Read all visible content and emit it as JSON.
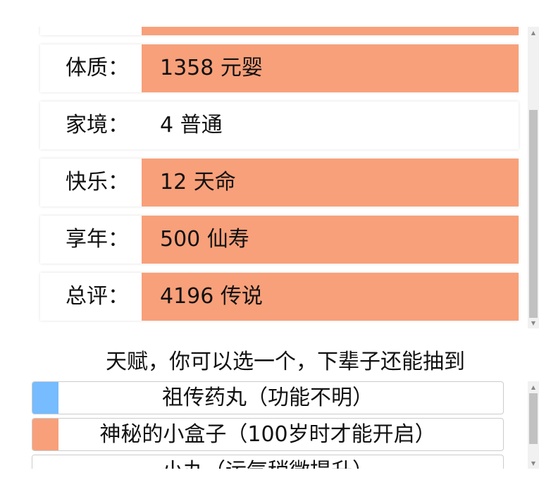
{
  "colors": {
    "accent": "#f8a07a",
    "blue": "#76bcff"
  },
  "stats": [
    {
      "label": "",
      "value": "",
      "highlight": true
    },
    {
      "label": "体质：",
      "value": "1358 元婴",
      "highlight": true
    },
    {
      "label": "家境：",
      "value": "4 普通",
      "highlight": false
    },
    {
      "label": "快乐：",
      "value": "12 天命",
      "highlight": true
    },
    {
      "label": "享年：",
      "value": "500 仙寿",
      "highlight": true
    },
    {
      "label": "总评：",
      "value": "4196 传说",
      "highlight": true
    }
  ],
  "talents_title": "天赋，你可以选一个，下辈子还能抽到",
  "talents": [
    {
      "label": "祖传药丸（功能不明）",
      "color": "#76bcff"
    },
    {
      "label": "神秘的小盒子（100岁时才能开启）",
      "color": "#f8a07a"
    },
    {
      "label": "小丸（运气稍微提升）",
      "color": "#ffffff"
    }
  ]
}
